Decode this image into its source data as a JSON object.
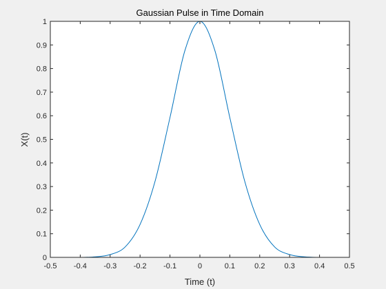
{
  "chart_data": {
    "type": "line",
    "title": "Gaussian Pulse in Time Domain",
    "xlabel": "Time (t)",
    "ylabel": "X(t)",
    "xlim": [
      -0.5,
      0.5
    ],
    "ylim": [
      0,
      1
    ],
    "x_ticks": [
      "-0.5",
      "-0.4",
      "-0.3",
      "-0.2",
      "-0.1",
      "0",
      "0.1",
      "0.2",
      "0.3",
      "0.4",
      "0.5"
    ],
    "y_ticks": [
      "0",
      "0.1",
      "0.2",
      "0.3",
      "0.4",
      "0.5",
      "0.6",
      "0.7",
      "0.8",
      "0.9",
      "1"
    ],
    "grid": false,
    "series": [
      {
        "color": "#0072bd",
        "x": [
          -0.5,
          -0.45,
          -0.4,
          -0.35,
          -0.3,
          -0.25,
          -0.2,
          -0.15,
          -0.1,
          -0.05,
          0,
          0.05,
          0.1,
          0.15,
          0.2,
          0.25,
          0.3,
          0.35,
          0.4,
          0.45,
          0.5
        ],
        "y": [
          0.0,
          0.0,
          0.0,
          0.0021,
          0.0116,
          0.0439,
          0.1393,
          0.3218,
          0.5924,
          0.8766,
          1.0,
          0.8766,
          0.5924,
          0.3218,
          0.1393,
          0.0439,
          0.0116,
          0.0021,
          0.0,
          0.0,
          0.0
        ]
      }
    ]
  }
}
